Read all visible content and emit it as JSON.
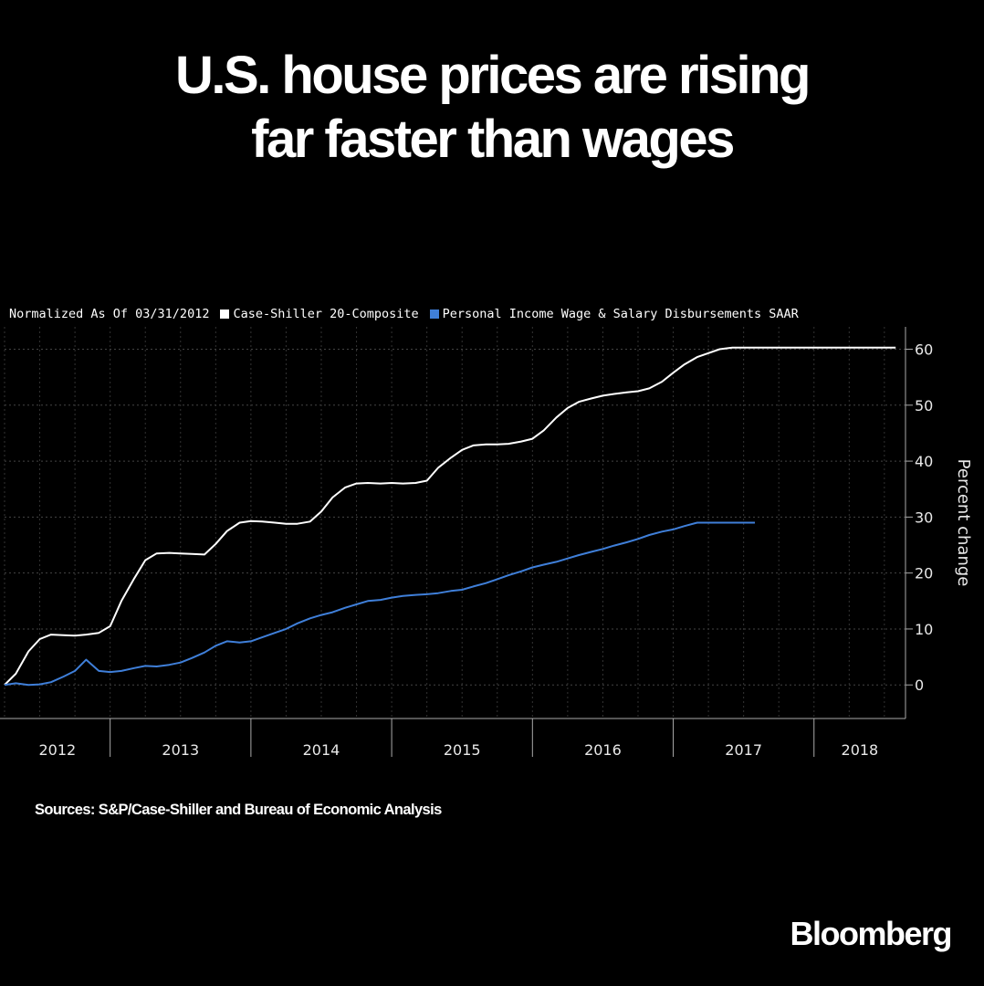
{
  "header": {
    "title_line1": "U.S. house prices are rising",
    "title_line2": "far faster than wages"
  },
  "legend": {
    "note": "Normalized As Of 03/31/2012",
    "items": [
      {
        "label": "Case-Shiller 20-Composite",
        "color": "#ffffff"
      },
      {
        "label": "Personal Income Wage & Salary Disbursements SAAR",
        "color": "#3f7fd9"
      }
    ]
  },
  "footer": {
    "source": "Sources: S&P/Case-Shiller and Bureau of Economic Analysis",
    "brand": "Bloomberg"
  },
  "chart_data": {
    "type": "line",
    "ylabel": "Percent change",
    "ylim": [
      -6,
      64
    ],
    "yticks": [
      0,
      10,
      20,
      30,
      40,
      50,
      60
    ],
    "xlim": [
      2012.25,
      2018.65
    ],
    "year_labels": [
      "2012",
      "2013",
      "2014",
      "2015",
      "2016",
      "2017",
      "2018"
    ],
    "grid": true,
    "series": [
      {
        "name": "Case-Shiller 20-Composite",
        "color": "#ffffff",
        "x": [
          2012.25,
          2012.33,
          2012.42,
          2012.5,
          2012.58,
          2012.67,
          2012.75,
          2012.83,
          2012.92,
          2013.0,
          2013.08,
          2013.17,
          2013.25,
          2013.33,
          2013.42,
          2013.5,
          2013.58,
          2013.67,
          2013.75,
          2013.83,
          2013.92,
          2014.0,
          2014.08,
          2014.17,
          2014.25,
          2014.33,
          2014.42,
          2014.5,
          2014.58,
          2014.67,
          2014.75,
          2014.83,
          2014.92,
          2015.0,
          2015.08,
          2015.17,
          2015.25,
          2015.33,
          2015.42,
          2015.5,
          2015.58,
          2015.67,
          2015.75,
          2015.83,
          2015.92,
          2016.0,
          2016.08,
          2016.17,
          2016.25,
          2016.33,
          2016.42,
          2016.5,
          2016.58,
          2016.67,
          2016.75,
          2016.83,
          2016.92,
          2017.0,
          2017.08,
          2017.17,
          2017.25,
          2017.33,
          2017.42,
          2017.5,
          2017.58,
          2017.67,
          2017.75,
          2017.83,
          2017.92,
          2018.0,
          2018.08,
          2018.17,
          2018.25,
          2018.33,
          2018.42,
          2018.5,
          2018.58
        ],
        "values": [
          0,
          2.0,
          6.0,
          8.2,
          9.0,
          8.9,
          8.8,
          9.0,
          9.3,
          10.5,
          15.0,
          19.0,
          22.3,
          23.5,
          23.6,
          23.5,
          23.4,
          23.3,
          25.2,
          27.5,
          29.0,
          29.3,
          29.2,
          29.0,
          28.8,
          28.8,
          29.2,
          31.0,
          33.5,
          35.3,
          36.0,
          36.1,
          36.0,
          36.1,
          36.0,
          36.1,
          36.5,
          38.8,
          40.6,
          42.0,
          42.8,
          43.0,
          43.0,
          43.1,
          43.5,
          44.0,
          45.5,
          47.8,
          49.5,
          50.6,
          51.2,
          51.7,
          52.0,
          52.3,
          52.5,
          53.0,
          54.2,
          55.8,
          57.3,
          58.6,
          59.3,
          60.0,
          60.3,
          60.3,
          60.3,
          60.3,
          60.3,
          60.3,
          60.3,
          60.3,
          60.3,
          60.3,
          60.3,
          60.3,
          60.3,
          60.3,
          60.3
        ]
      },
      {
        "name": "Personal Income Wage & Salary Disbursements SAAR",
        "color": "#3f7fd9",
        "x": [
          2012.25,
          2012.33,
          2012.42,
          2012.5,
          2012.58,
          2012.67,
          2012.75,
          2012.83,
          2012.92,
          2013.0,
          2013.08,
          2013.17,
          2013.25,
          2013.33,
          2013.42,
          2013.5,
          2013.58,
          2013.67,
          2013.75,
          2013.83,
          2013.92,
          2014.0,
          2014.08,
          2014.17,
          2014.25,
          2014.33,
          2014.42,
          2014.5,
          2014.58,
          2014.67,
          2014.75,
          2014.83,
          2014.92,
          2015.0,
          2015.08,
          2015.17,
          2015.25,
          2015.33,
          2015.42,
          2015.5,
          2015.58,
          2015.67,
          2015.75,
          2015.83,
          2015.92,
          2016.0,
          2016.08,
          2016.17,
          2016.25,
          2016.33,
          2016.42,
          2016.5,
          2016.58,
          2016.67,
          2016.75,
          2016.83,
          2016.92,
          2017.0,
          2017.08,
          2017.17,
          2017.25,
          2017.33,
          2017.42,
          2017.5,
          2017.58
        ],
        "values": [
          0,
          0.3,
          0.0,
          0.1,
          0.5,
          1.5,
          2.5,
          4.5,
          2.5,
          2.3,
          2.5,
          3.0,
          3.4,
          3.3,
          3.6,
          4.0,
          4.8,
          5.8,
          7.0,
          7.8,
          7.6,
          7.8,
          8.5,
          9.3,
          10.0,
          11.0,
          11.9,
          12.5,
          13.0,
          13.8,
          14.4,
          15.0,
          15.2,
          15.6,
          15.9,
          16.1,
          16.2,
          16.4,
          16.8,
          17.0,
          17.6,
          18.2,
          18.9,
          19.6,
          20.3,
          21.0,
          21.5,
          22.0,
          22.6,
          23.2,
          23.8,
          24.3,
          24.9,
          25.5,
          26.1,
          26.8,
          27.4,
          27.8,
          28.4,
          29.0,
          29.0,
          29.0,
          29.0,
          29.0,
          29.0
        ]
      }
    ]
  }
}
